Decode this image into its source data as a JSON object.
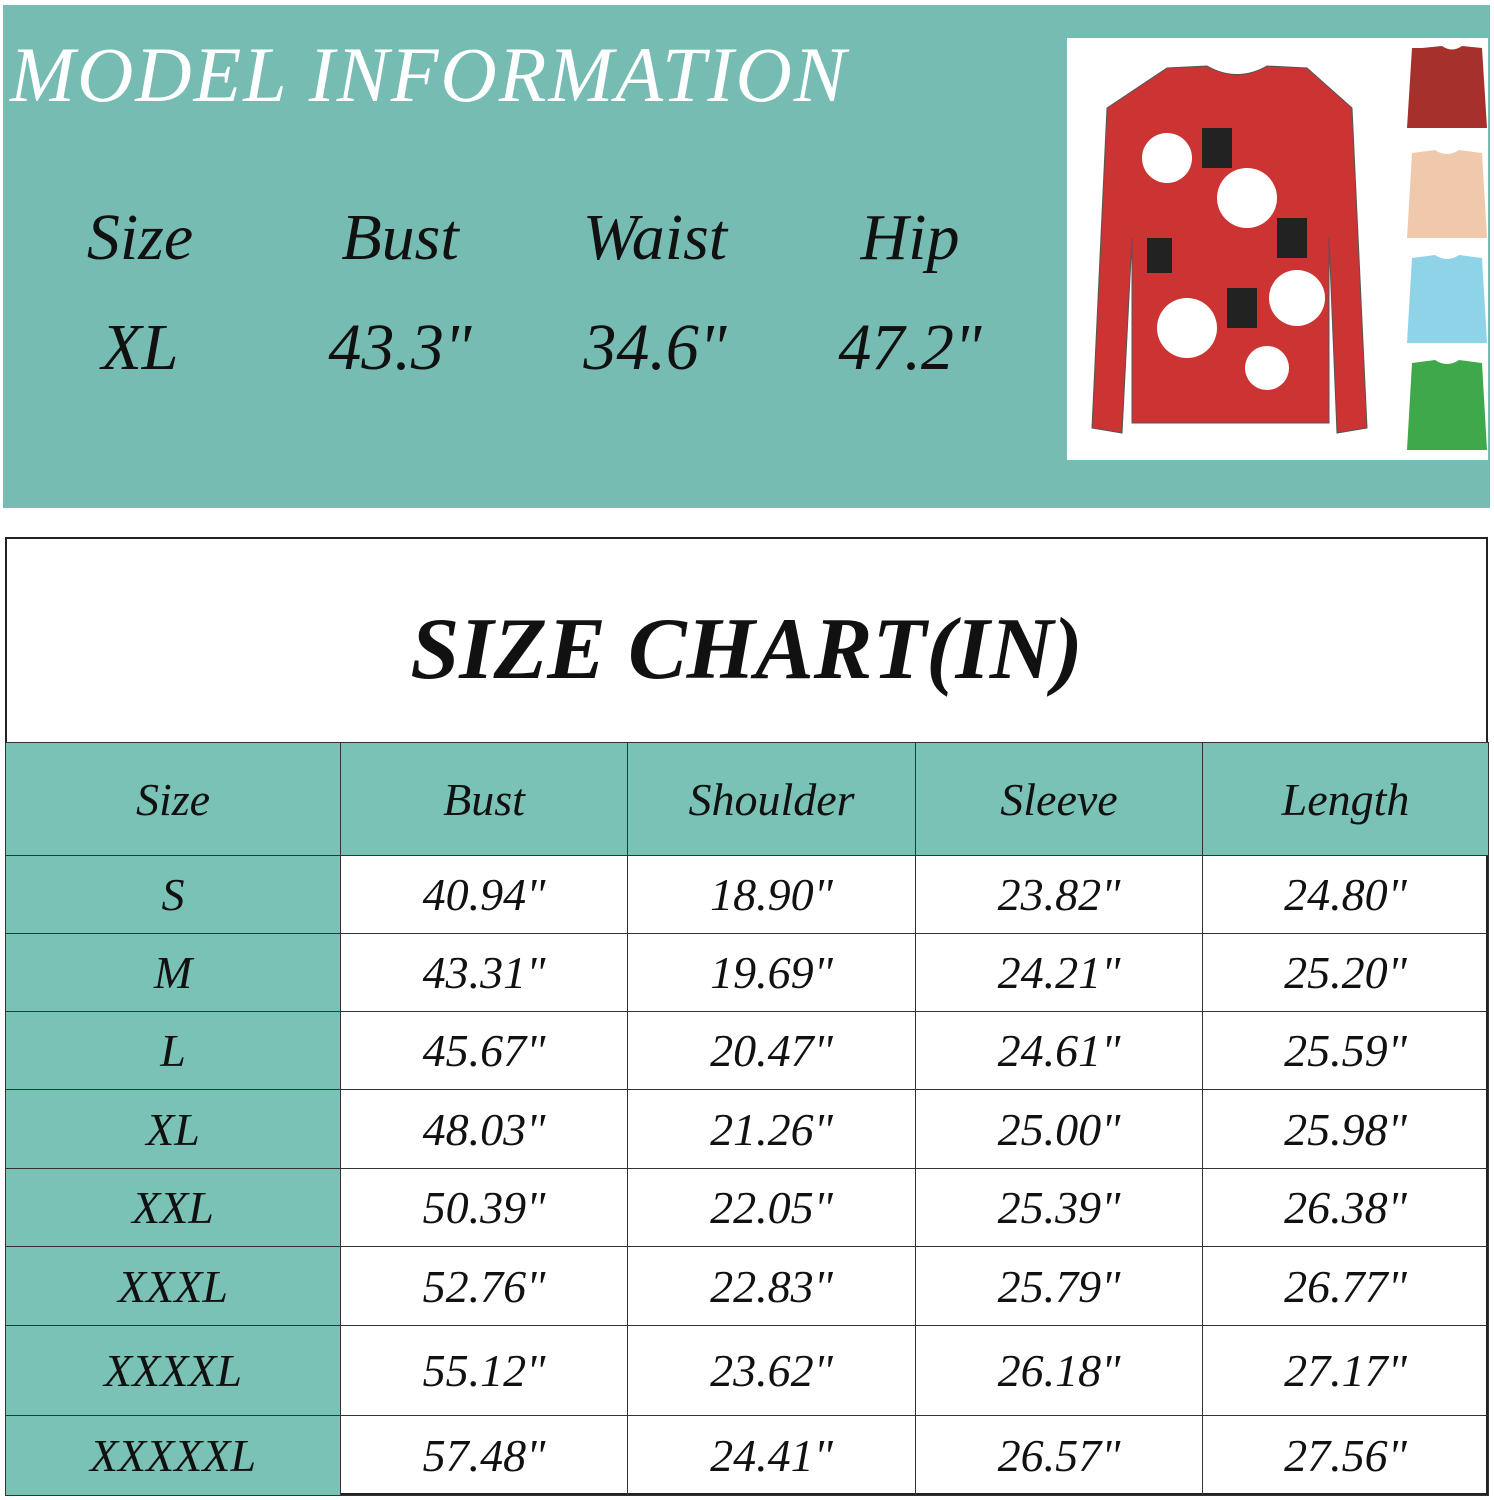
{
  "model_info": {
    "title": "MODEL INFORMATION",
    "headers": [
      "Size",
      "Bust",
      "Waist",
      "Hip"
    ],
    "values": [
      "XL",
      "43.3\"",
      "34.6\"",
      "47.2\""
    ]
  },
  "size_chart": {
    "title": "SIZE CHART(IN)",
    "headers": [
      "Size",
      "Bust",
      "Shoulder",
      "Sleeve",
      "Length"
    ],
    "rows": [
      [
        "S",
        "40.94\"",
        "18.90\"",
        "23.82\"",
        "24.80\""
      ],
      [
        "M",
        "43.31\"",
        "19.69\"",
        "24.21\"",
        "25.20\""
      ],
      [
        "L",
        "45.67\"",
        "20.47\"",
        "24.61\"",
        "25.59\""
      ],
      [
        "XL",
        "48.03\"",
        "21.26\"",
        "25.00\"",
        "25.98\""
      ],
      [
        "XXL",
        "50.39\"",
        "22.05\"",
        "25.39\"",
        "26.38\""
      ],
      [
        "XXXL",
        "52.76\"",
        "22.83\"",
        "25.79\"",
        "26.77\""
      ],
      [
        "XXXXL",
        "55.12\"",
        "23.62\"",
        "26.18\"",
        "27.17\""
      ],
      [
        "XXXXXL",
        "57.48\"",
        "24.41\"",
        "26.57\"",
        "27.56\""
      ]
    ]
  }
}
